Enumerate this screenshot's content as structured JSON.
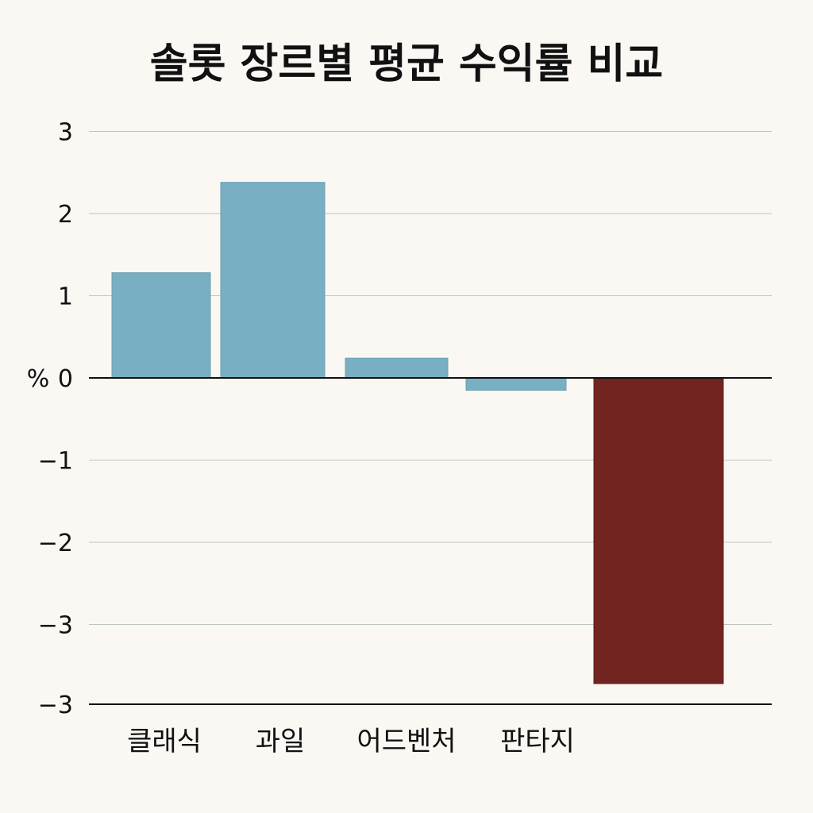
{
  "chart_data": {
    "type": "bar",
    "title": "솔롯 장르별 평균 수익률 비교",
    "categories": [
      "클래식",
      "과일",
      "어드벤처",
      "판타지",
      ""
    ],
    "values": [
      1.28,
      2.38,
      0.24,
      -0.15,
      -3.72
    ],
    "ylabel": "%",
    "ylim": [
      -4,
      3
    ],
    "y_tick_labels": [
      "3",
      "2",
      "1",
      "0",
      "−1",
      "−2",
      "−3",
      "−3"
    ],
    "grid": true,
    "colors": {
      "positive": "#78afc2",
      "negative_highlight": "#722420",
      "grid": "#bcc3c0",
      "axis": "#111111"
    }
  }
}
